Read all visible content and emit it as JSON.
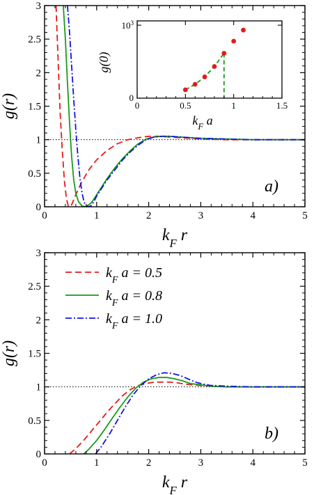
{
  "colors": {
    "red": "#e41a1c",
    "green": "#1a9a1a",
    "blue": "#1414e0"
  },
  "chart_data": [
    {
      "id": "a",
      "type": "line",
      "panel_label": "a)",
      "ylabel": "g(r)",
      "xlabel": "k_F r",
      "xlim": [
        0,
        5
      ],
      "ylim": [
        0,
        3
      ],
      "xticks": [
        "0",
        "1",
        "2",
        "3",
        "4",
        "5"
      ],
      "yticks": [
        "0",
        "0.5",
        "1",
        "1.5",
        "2",
        "2.5",
        "3"
      ],
      "reference_line": 1,
      "series": [
        {
          "color": "red",
          "style": "dashed",
          "x": [
            0.22,
            0.26,
            0.3,
            0.34,
            0.38,
            0.42,
            0.46,
            0.52,
            0.6,
            0.7,
            0.85,
            1.0,
            1.2,
            1.4,
            1.6,
            1.8,
            2.0,
            2.2,
            2.4,
            2.6,
            2.8,
            3.0,
            3.5,
            4.0,
            4.5,
            5.0
          ],
          "y": [
            3.0,
            2.2,
            1.4,
            0.85,
            0.4,
            0.12,
            0.0,
            0.03,
            0.18,
            0.35,
            0.55,
            0.7,
            0.84,
            0.94,
            1.0,
            1.03,
            1.05,
            1.05,
            1.04,
            1.03,
            1.02,
            1.01,
            1.0,
            1.0,
            1.0,
            1.0
          ]
        },
        {
          "color": "green",
          "style": "solid",
          "x": [
            0.36,
            0.4,
            0.44,
            0.48,
            0.52,
            0.56,
            0.6,
            0.65,
            0.72,
            0.8,
            0.9,
            1.0,
            1.1,
            1.2,
            1.35,
            1.5,
            1.65,
            1.8,
            1.95,
            2.1,
            2.25,
            2.4,
            2.6,
            2.8,
            3.0,
            3.5,
            4.0,
            4.5,
            5.0
          ],
          "y": [
            3.0,
            2.5,
            1.85,
            1.25,
            0.75,
            0.4,
            0.2,
            0.08,
            0.01,
            0.0,
            0.06,
            0.18,
            0.3,
            0.42,
            0.58,
            0.72,
            0.84,
            0.94,
            1.01,
            1.04,
            1.05,
            1.05,
            1.04,
            1.03,
            1.02,
            1.01,
            1.0,
            1.0,
            1.0
          ]
        },
        {
          "color": "blue",
          "style": "dashdot",
          "x": [
            0.44,
            0.48,
            0.52,
            0.56,
            0.6,
            0.64,
            0.68,
            0.72,
            0.76,
            0.8,
            0.85,
            0.9,
            0.95,
            1.0,
            1.1,
            1.2,
            1.35,
            1.5,
            1.65,
            1.8,
            1.95,
            2.1,
            2.25,
            2.4,
            2.6,
            2.8,
            3.0,
            3.5,
            4.0,
            4.5,
            5.0
          ],
          "y": [
            3.0,
            2.6,
            2.1,
            1.6,
            1.15,
            0.75,
            0.42,
            0.2,
            0.07,
            0.02,
            0.0,
            0.02,
            0.08,
            0.16,
            0.28,
            0.4,
            0.55,
            0.7,
            0.82,
            0.92,
            1.0,
            1.04,
            1.05,
            1.05,
            1.04,
            1.03,
            1.02,
            1.01,
            1.0,
            1.0,
            1.0
          ]
        }
      ],
      "inset": {
        "type": "scatter",
        "xlabel": "k_F a",
        "ylabel": "g(0)",
        "xlim": [
          0,
          1.5
        ],
        "yscale": "log",
        "ylim": [
          1,
          1500
        ],
        "xticks": [
          "0",
          "0.5",
          "1",
          "1.5"
        ],
        "yticks": [
          "0",
          "10^3"
        ],
        "points": {
          "x": [
            0.5,
            0.6,
            0.7,
            0.8,
            0.9,
            1.0,
            1.1
          ],
          "y": [
            2.2,
            3.7,
            7.5,
            20,
            70,
            220,
            630
          ]
        },
        "fit_line": {
          "x": [
            0.5,
            0.6,
            0.7,
            0.8,
            0.9
          ],
          "y": [
            2.2,
            3.7,
            7.5,
            20,
            70
          ]
        },
        "marker_x": 0.9
      }
    },
    {
      "id": "b",
      "type": "line",
      "panel_label": "b)",
      "ylabel": "g(r)",
      "xlabel": "k_F r",
      "xlim": [
        0,
        5
      ],
      "ylim": [
        0,
        3
      ],
      "xticks": [
        "0",
        "1",
        "2",
        "3",
        "4",
        "5"
      ],
      "yticks": [
        "0",
        "0.5",
        "1",
        "1.5",
        "2",
        "2.5",
        "3"
      ],
      "reference_line": 1,
      "legend": {
        "placement": "top-left"
      },
      "series": [
        {
          "name": "k_F a = 0.5",
          "color": "red",
          "style": "dashed",
          "x": [
            0.48,
            0.6,
            0.75,
            0.9,
            1.05,
            1.2,
            1.35,
            1.5,
            1.65,
            1.8,
            1.95,
            2.1,
            2.25,
            2.4,
            2.55,
            2.7,
            2.85,
            3.0,
            3.2,
            3.5,
            4.0,
            4.5,
            5.0
          ],
          "y": [
            0.0,
            0.08,
            0.2,
            0.34,
            0.48,
            0.62,
            0.75,
            0.87,
            0.96,
            1.02,
            1.05,
            1.07,
            1.07,
            1.07,
            1.06,
            1.04,
            1.03,
            1.02,
            1.01,
            1.0,
            1.0,
            1.0,
            1.0
          ]
        },
        {
          "name": "k_F a = 0.8",
          "color": "green",
          "style": "solid",
          "x": [
            0.75,
            0.85,
            1.0,
            1.15,
            1.3,
            1.45,
            1.6,
            1.75,
            1.9,
            2.05,
            2.2,
            2.35,
            2.5,
            2.65,
            2.8,
            3.0,
            3.2,
            3.5,
            4.0,
            4.5,
            5.0
          ],
          "y": [
            0.0,
            0.07,
            0.2,
            0.36,
            0.53,
            0.7,
            0.85,
            0.98,
            1.07,
            1.12,
            1.14,
            1.14,
            1.12,
            1.09,
            1.05,
            1.03,
            1.01,
            1.0,
            1.0,
            1.0,
            1.0
          ]
        },
        {
          "name": "k_F a = 1.0",
          "color": "blue",
          "style": "dashdot",
          "x": [
            0.98,
            1.1,
            1.25,
            1.4,
            1.55,
            1.7,
            1.85,
            2.0,
            2.15,
            2.3,
            2.45,
            2.6,
            2.75,
            2.9,
            3.05,
            3.2,
            3.5,
            4.0,
            4.5,
            5.0
          ],
          "y": [
            0.0,
            0.12,
            0.3,
            0.5,
            0.7,
            0.88,
            1.02,
            1.12,
            1.18,
            1.21,
            1.2,
            1.17,
            1.12,
            1.07,
            1.04,
            1.02,
            1.01,
            1.0,
            1.0,
            1.0
          ]
        }
      ]
    }
  ]
}
